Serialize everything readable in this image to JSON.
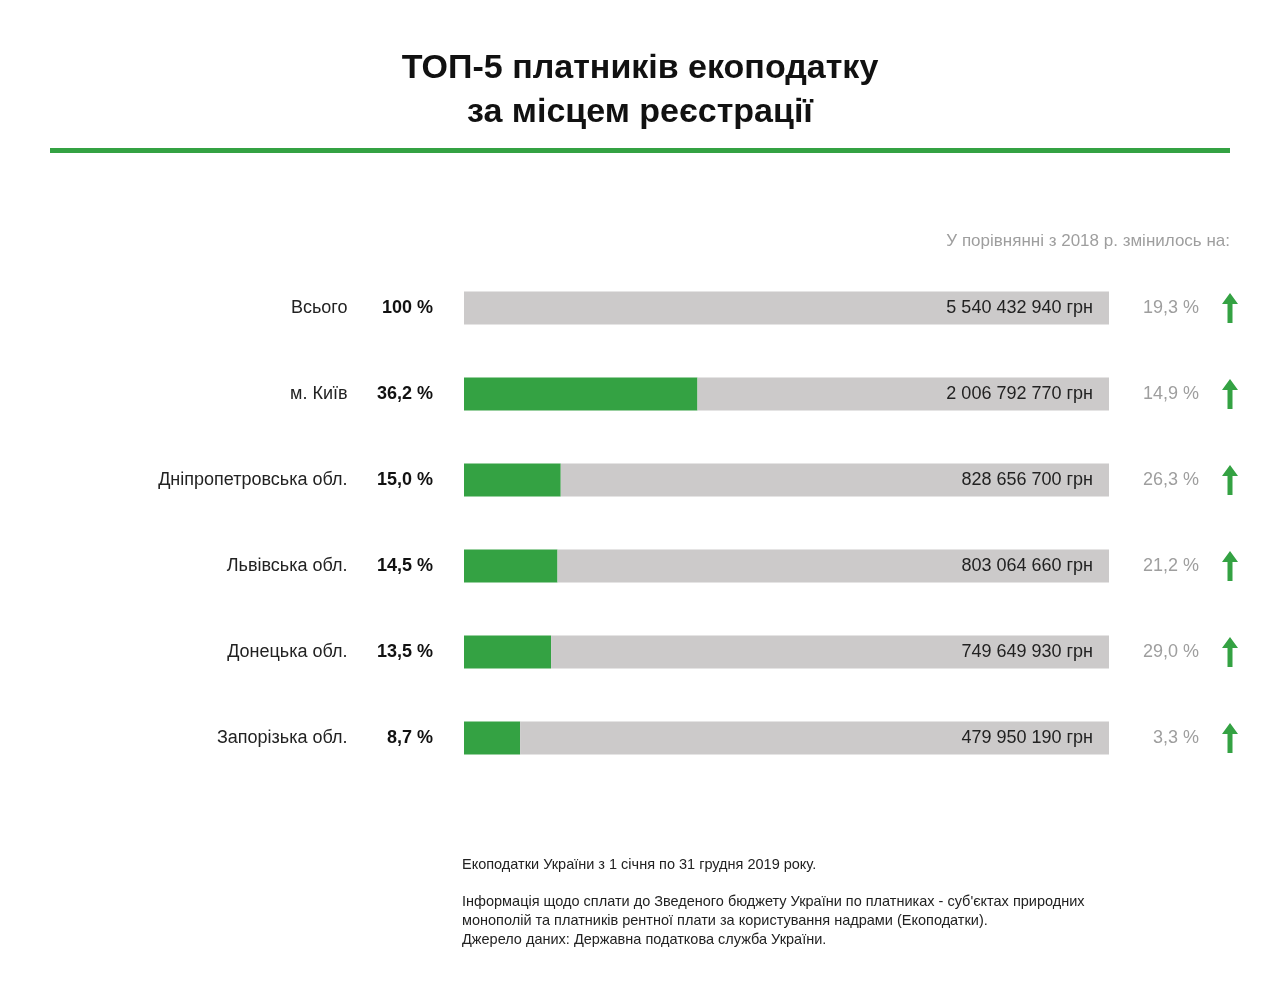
{
  "chart_data": {
    "type": "bar",
    "title": "ТОП-5 платників екоподатку за місцем реєстрації",
    "orientation": "horizontal",
    "stacked": true,
    "tick_labels": "y",
    "xlim": [
      0,
      100
    ],
    "categories": [
      "Всього",
      "м. Київ",
      "Дніпропетровська обл.",
      "Львівська обл.",
      "Донецька обл.",
      "Запорізька обл."
    ],
    "series": [
      {
        "colors": [
          "#cccaca",
          "#34a243",
          "#34a243",
          "#34a243",
          "#34a243",
          "#34a243"
        ],
        "values": [
          100,
          36.2,
          15.0,
          14.5,
          13.5,
          8.7
        ],
        "value_labels": [
          "100 %",
          "36,2 %",
          "15,0 %",
          "14,5 %",
          "13,5 %",
          "8,7 %"
        ]
      },
      {
        "color": "#cccaca",
        "values": [
          null,
          63.8,
          85.0,
          85.5,
          86.5,
          91.3
        ]
      }
    ],
    "annotations": [
      "У порівнянні з 2018 р. змінилось на:",
      "5 540 432 940 грн",
      "2 006 792 770 грн",
      "828 656 700 грн",
      "803 064 660 грн",
      "749 649 930 грн",
      "479 950 190 грн",
      "19,3 %",
      "14,9 %",
      "26,3 %",
      "21,2 %",
      "29,0 %",
      "3,3 %",
      "Екоподатки України з 1 січня по 31 грудня 2019 року.",
      "Інформація щодо сплати до Зведеного бюджету України по платниках - суб'єктах природних монополій та платників рентної плати за користування надрами (Екоподатки).",
      "Джерело даних: Державна податкова служба України."
    ]
  }
}
